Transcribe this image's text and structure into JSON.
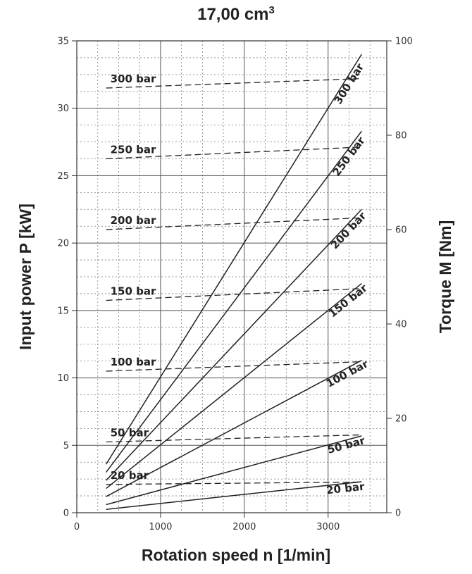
{
  "chart_data": {
    "type": "line",
    "title_main": "17,00 cm",
    "title_sup": "3",
    "xlabel": "Rotation speed n [1/min]",
    "ylabel": "Input power P [kW]",
    "y2label": "Torque M [Nm]",
    "xlim": [
      0,
      3700
    ],
    "ylim": [
      0,
      35
    ],
    "y2lim": [
      0,
      100
    ],
    "xticks": [
      "0",
      "1000",
      "2000",
      "3000"
    ],
    "yticks": [
      "0",
      "5",
      "10",
      "15",
      "20",
      "25",
      "30",
      "35"
    ],
    "y2ticks": [
      "0",
      "20",
      "40",
      "60",
      "80",
      "100"
    ],
    "grid": true,
    "power_series": [
      {
        "name": "300 bar",
        "x": [
          350,
          3400
        ],
        "y": [
          3.6,
          34.0
        ]
      },
      {
        "name": "250 bar",
        "x": [
          350,
          3400
        ],
        "y": [
          3.0,
          28.3
        ]
      },
      {
        "name": "200 bar",
        "x": [
          350,
          3400
        ],
        "y": [
          2.4,
          22.5
        ]
      },
      {
        "name": "150 bar",
        "x": [
          350,
          3400
        ],
        "y": [
          1.8,
          17.0
        ]
      },
      {
        "name": "100 bar",
        "x": [
          350,
          3400
        ],
        "y": [
          1.2,
          11.3
        ]
      },
      {
        "name": "50 bar",
        "x": [
          350,
          3400
        ],
        "y": [
          0.6,
          5.7
        ]
      },
      {
        "name": "20 bar",
        "x": [
          350,
          3400
        ],
        "y": [
          0.25,
          2.3
        ]
      }
    ],
    "torque_series": [
      {
        "name": "300 bar",
        "x": [
          350,
          3400
        ],
        "y_nm": [
          90.0,
          92.0
        ]
      },
      {
        "name": "250 bar",
        "x": [
          350,
          3400
        ],
        "y_nm": [
          75.0,
          77.5
        ]
      },
      {
        "name": "200 bar",
        "x": [
          350,
          3400
        ],
        "y_nm": [
          60.0,
          62.5
        ]
      },
      {
        "name": "150 bar",
        "x": [
          350,
          3400
        ],
        "y_nm": [
          45.0,
          47.5
        ]
      },
      {
        "name": "100 bar",
        "x": [
          350,
          3400
        ],
        "y_nm": [
          30.0,
          32.0
        ]
      },
      {
        "name": "50 bar",
        "x": [
          350,
          3400
        ],
        "y_nm": [
          15.0,
          16.5
        ]
      },
      {
        "name": "20 bar",
        "x": [
          350,
          3400
        ],
        "y_nm": [
          6.0,
          6.5
        ]
      }
    ]
  }
}
